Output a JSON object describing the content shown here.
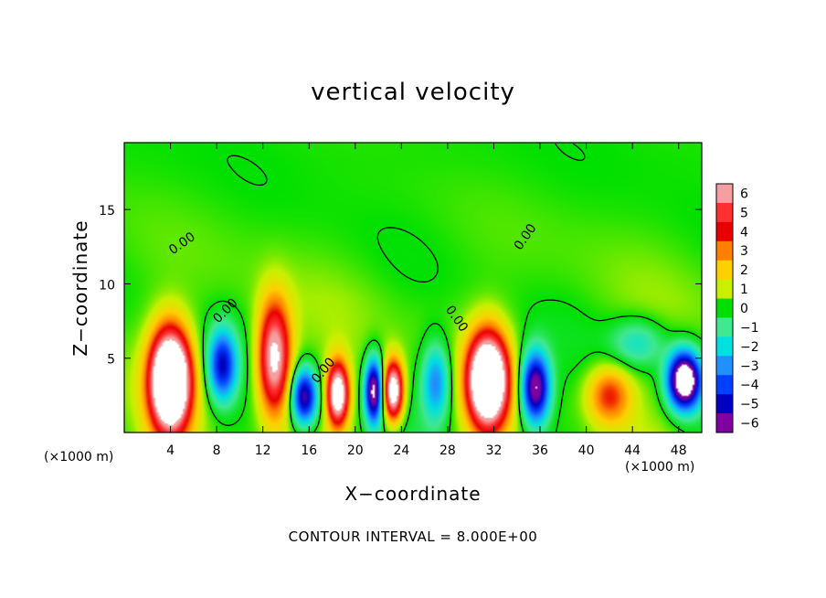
{
  "chart_data": {
    "type": "heatmap",
    "title": "vertical velocity",
    "xlabel": "X−coordinate",
    "ylabel": "Z−coordinate",
    "x_unit_left": "(×1000 m)",
    "x_unit_right": "(×1000 m)",
    "xlim": [
      0,
      50
    ],
    "ylim": [
      0,
      19.5
    ],
    "x_ticks": [
      4,
      8,
      12,
      16,
      20,
      24,
      28,
      32,
      36,
      40,
      44,
      48
    ],
    "y_ticks": [
      5,
      10,
      15
    ],
    "colorbar": {
      "levels": [
        6,
        5,
        4,
        3,
        2,
        1,
        0,
        -1,
        -2,
        -3,
        -4,
        -5,
        -6
      ],
      "tick_labels": [
        "6",
        "5",
        "4",
        "3",
        "2",
        "1",
        "0",
        "−1",
        "−2",
        "−3",
        "−4",
        "−5",
        "−6"
      ],
      "colors": [
        "#f4a0a0",
        "#ff3030",
        "#e80000",
        "#ff8000",
        "#ffd000",
        "#c8f000",
        "#00e000",
        "#40e890",
        "#00e0e0",
        "#2090ff",
        "#0040ff",
        "#0000c0",
        "#8000a0"
      ]
    },
    "contour_label": "0.00",
    "contour_interval_text": "CONTOUR INTERVAL =  8.000E+00",
    "blobs": [
      {
        "x": 4.0,
        "z": 3.5,
        "w": 3.6,
        "h": 7.0,
        "sign": 1,
        "peak": 12
      },
      {
        "x": 8.5,
        "z": 4.5,
        "w": 2.6,
        "h": 5.0,
        "sign": -1,
        "peak": 5
      },
      {
        "x": 13.0,
        "z": 5.0,
        "w": 3.0,
        "h": 8.0,
        "sign": 1,
        "peak": 7
      },
      {
        "x": 15.6,
        "z": 2.4,
        "w": 2.4,
        "h": 4.0,
        "sign": -1,
        "peak": 6
      },
      {
        "x": 18.5,
        "z": 2.6,
        "w": 2.0,
        "h": 4.5,
        "sign": 1,
        "peak": 8
      },
      {
        "x": 21.6,
        "z": 2.8,
        "w": 1.6,
        "h": 4.5,
        "sign": -1,
        "peak": 7
      },
      {
        "x": 23.3,
        "z": 2.8,
        "w": 1.8,
        "h": 4.2,
        "sign": 1,
        "peak": 8
      },
      {
        "x": 27.0,
        "z": 3.4,
        "w": 2.6,
        "h": 5.5,
        "sign": -1,
        "peak": 3.5
      },
      {
        "x": 31.5,
        "z": 3.5,
        "w": 3.6,
        "h": 6.5,
        "sign": 1,
        "peak": 11
      },
      {
        "x": 35.6,
        "z": 3.0,
        "w": 2.6,
        "h": 5.0,
        "sign": -1,
        "peak": 7
      },
      {
        "x": 42.0,
        "z": 2.5,
        "w": 4.0,
        "h": 4.0,
        "sign": 1,
        "peak": 3.5
      },
      {
        "x": 44.5,
        "z": 6.0,
        "w": 5.0,
        "h": 3.5,
        "sign": -1,
        "peak": 2.0
      },
      {
        "x": 48.5,
        "z": 3.5,
        "w": 3.0,
        "h": 4.0,
        "sign": -1,
        "peak": 9
      }
    ]
  }
}
